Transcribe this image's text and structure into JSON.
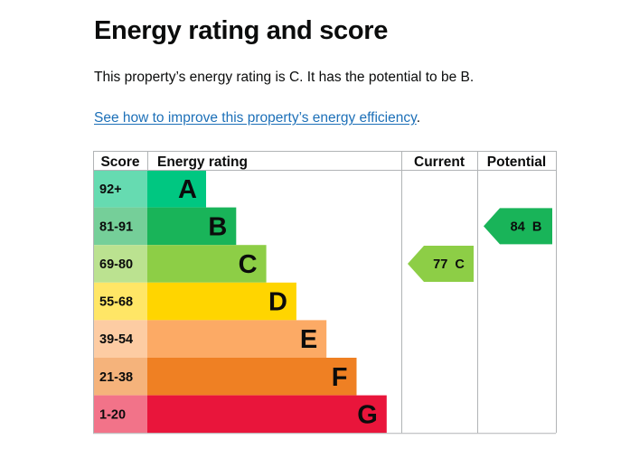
{
  "title": "Energy rating and score",
  "description": "This property’s energy rating is C. It has the potential to be B.",
  "improve_link": "See how to improve this property’s energy efficiency",
  "improve_link_suffix": ".",
  "chart_data": {
    "type": "energy-rating",
    "headers": {
      "score": "Score",
      "rating": "Energy rating",
      "current": "Current",
      "potential": "Potential"
    },
    "bands": [
      {
        "letter": "A",
        "range": "92+",
        "color": "#00c781",
        "score_bg": "#66dbb1"
      },
      {
        "letter": "B",
        "range": "81-91",
        "color": "#19b459",
        "score_bg": "#75cf99"
      },
      {
        "letter": "C",
        "range": "69-80",
        "color": "#8dce46",
        "score_bg": "#bbe290"
      },
      {
        "letter": "D",
        "range": "55-68",
        "color": "#ffd500",
        "score_bg": "#ffe666"
      },
      {
        "letter": "E",
        "range": "39-54",
        "color": "#fcaa65",
        "score_bg": "#fdcca3"
      },
      {
        "letter": "F",
        "range": "21-38",
        "color": "#ef8023",
        "score_bg": "#f5b37b"
      },
      {
        "letter": "G",
        "range": "1-20",
        "color": "#e9153b",
        "score_bg": "#f27389"
      }
    ],
    "current": {
      "score": 77,
      "band": "C",
      "label": "77  C",
      "color": "#8dce46"
    },
    "potential": {
      "score": 84,
      "band": "B",
      "label": "84  B",
      "color": "#19b459"
    }
  }
}
